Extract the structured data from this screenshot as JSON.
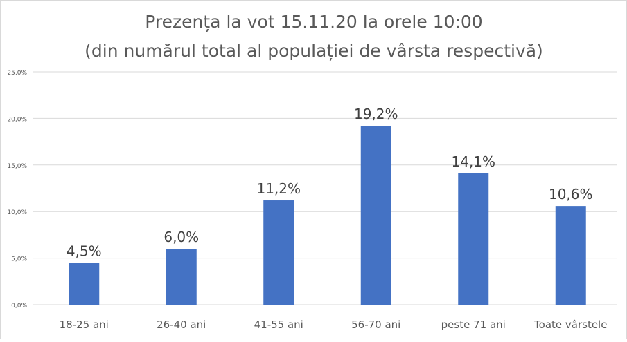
{
  "chart_data": {
    "type": "bar",
    "title": "Prezența la vot 15.11.20 la orele 10:00",
    "subtitle": "(din numărul total al populației de vârsta respectivă)",
    "categories": [
      "18-25 ani",
      "26-40 ani",
      "41-55 ani",
      "56-70 ani",
      "peste 71 ani",
      "Toate vârstele"
    ],
    "values": [
      4.5,
      6.0,
      11.2,
      19.2,
      14.1,
      10.6
    ],
    "data_labels": [
      "4,5%",
      "6,0%",
      "11,2%",
      "19,2%",
      "14,1%",
      "10,6%"
    ],
    "y_ticks": [
      0,
      5,
      10,
      15,
      20,
      25
    ],
    "y_tick_labels": [
      "0,0%",
      "5,0%",
      "10,0%",
      "15,0%",
      "20,0%",
      "25,0%"
    ],
    "xlabel": "",
    "ylabel": "",
    "ylim": [
      0,
      25
    ],
    "grid": true,
    "legend": "none",
    "colors": {
      "bar": "#4472C4",
      "grid": "#d9d9d9",
      "text": "#595959",
      "label": "#404040"
    }
  }
}
